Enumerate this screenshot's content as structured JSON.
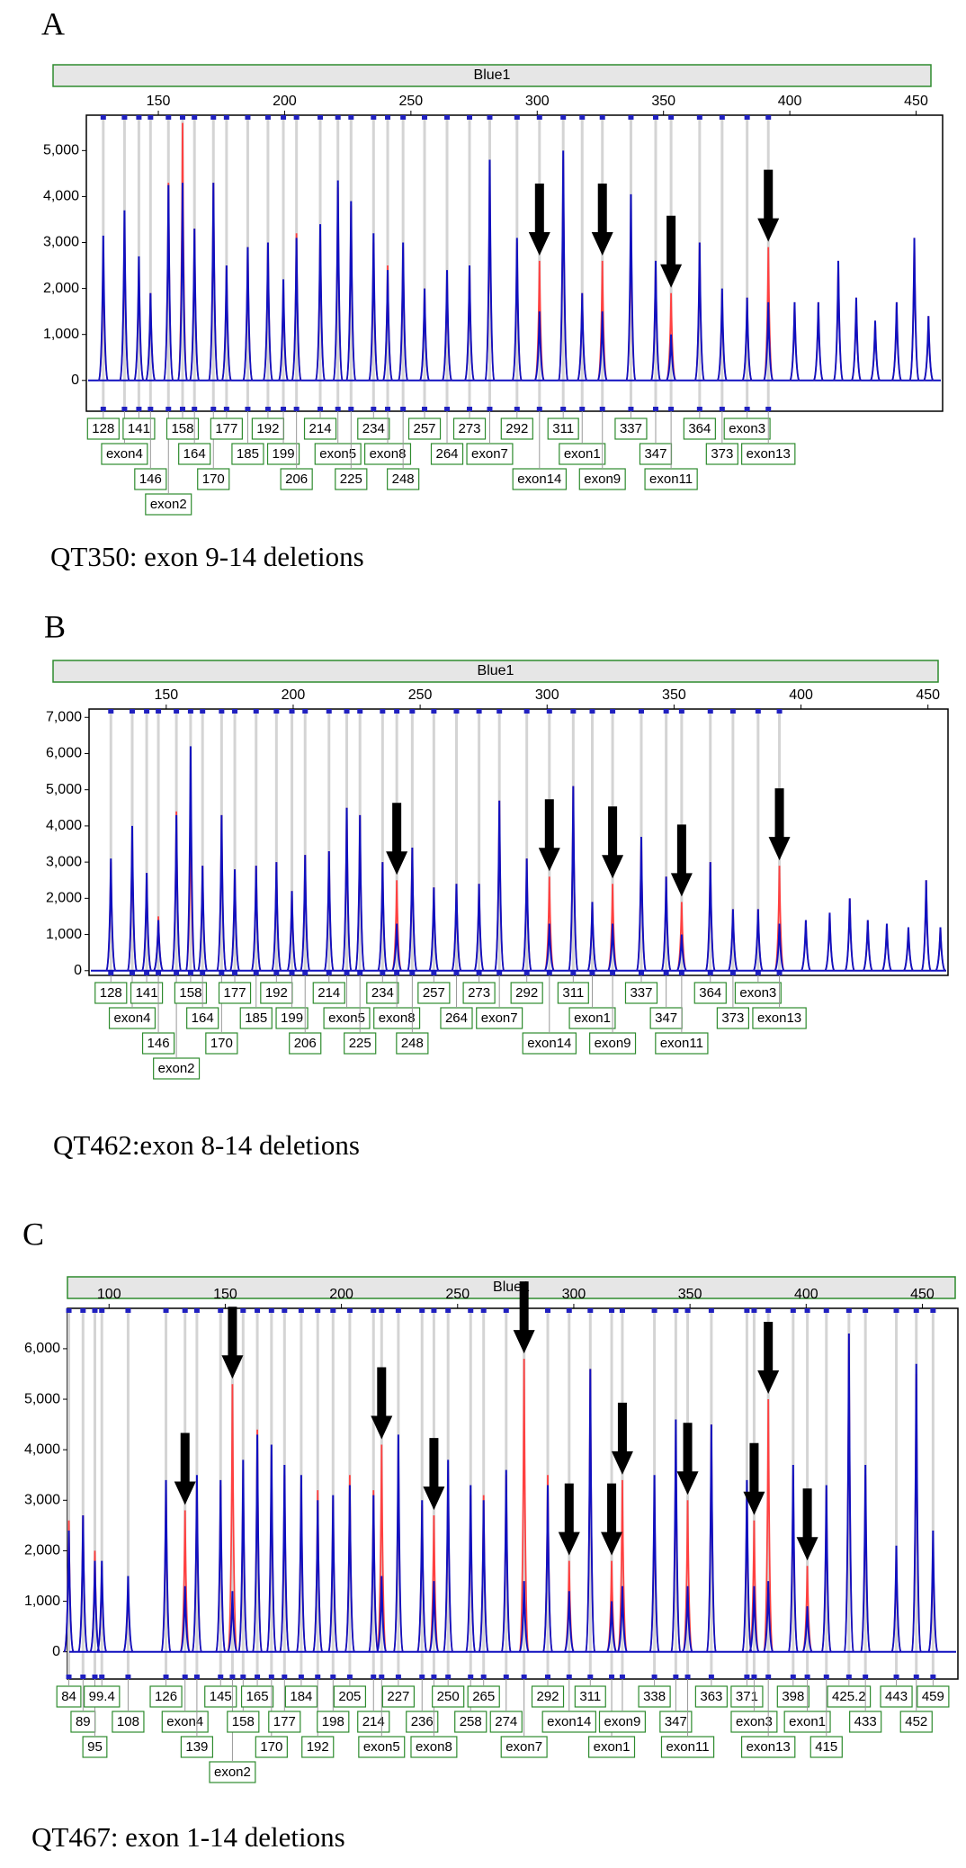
{
  "chart_data": [
    {
      "type": "electropherogram",
      "panel_label": "A",
      "title": "Blue1",
      "caption": "QT350: exon 9-14 deletions",
      "x": [
        128.2,
        136.6,
        142.3,
        146.9,
        154,
        159.6,
        164.3,
        171.8,
        177,
        185.4,
        193.4,
        199.5,
        204.7,
        214.1,
        221.1,
        226.3,
        235.2,
        240.8,
        246.9,
        255.4,
        264.3,
        273.2,
        281.2,
        292,
        300.9,
        310.3,
        317.8,
        325.8,
        337.1,
        346.9,
        353,
        364.3,
        373.2,
        383.1,
        391.5,
        401.9,
        411.3,
        419.2,
        426.3,
        433.8,
        442.3,
        449.3,
        454.9
      ],
      "probes": [
        "128",
        "exon4",
        "141",
        "146",
        "exon2",
        "158",
        "164",
        "170",
        "177",
        "185",
        "192",
        "199",
        "206",
        "214",
        "exon5",
        "225",
        "234",
        "exon8",
        "248",
        "257",
        "264",
        "273",
        "exon7",
        "292",
        "exon14",
        "311",
        "exon1",
        "exon9",
        "337",
        "347",
        "exon11",
        "364",
        "373",
        "exon3",
        "exon13",
        null,
        null,
        null,
        null,
        null,
        null,
        null,
        null
      ],
      "series": [
        {
          "color": "#ff4040",
          "values": [
            2800,
            3500,
            2600,
            1900,
            4300,
            5600,
            3300,
            4300,
            2500,
            2900,
            3000,
            2100,
            3200,
            3300,
            4200,
            3800,
            3000,
            2500,
            2900,
            2000,
            2300,
            2500,
            4500,
            3000,
            2600,
            4800,
            1900,
            2600,
            3600,
            2600,
            1900,
            3000,
            1900,
            1800,
            2900,
            1700,
            1700,
            2600,
            1800,
            1300,
            1700,
            3100,
            1400
          ]
        },
        {
          "color": "#1010c0",
          "values": [
            3150,
            3700,
            2700,
            1900,
            4250,
            4300,
            3300,
            4300,
            2500,
            2900,
            3000,
            2200,
            3100,
            3400,
            4350,
            3900,
            3200,
            2400,
            3000,
            2000,
            2400,
            2500,
            4800,
            3100,
            1500,
            5000,
            1900,
            1500,
            4050,
            2600,
            1000,
            3000,
            2000,
            1800,
            1700,
            1700,
            1700,
            2600,
            1800,
            1300,
            1700,
            3100,
            1400
          ]
        }
      ],
      "arrows": [
        300.9,
        325.8,
        353,
        391.5
      ],
      "xlim": [
        121.5,
        460.5
      ],
      "xticks": [
        150,
        200,
        250,
        300,
        350,
        400,
        450
      ],
      "ylim": [
        -670,
        5770
      ],
      "yticks": [
        0,
        {
          "value": 1000,
          "label": "1,000"
        },
        {
          "value": 2000,
          "label": "2,000"
        },
        {
          "value": 3000,
          "label": "3,000"
        },
        {
          "value": 4000,
          "label": "4,000"
        },
        {
          "value": 5000,
          "label": "5,000"
        }
      ]
    },
    {
      "type": "electropherogram",
      "panel_label": "B",
      "title": "Blue1",
      "caption": "QT462:exon 8-14 deletions",
      "x": [
        128.2,
        136.6,
        142.3,
        146.9,
        154,
        159.6,
        164.3,
        171.8,
        177,
        185.4,
        193.4,
        199.5,
        204.7,
        214.1,
        221.1,
        226.3,
        235.2,
        240.8,
        246.9,
        255.4,
        264.3,
        273.2,
        281.2,
        292,
        300.9,
        310.3,
        317.8,
        325.8,
        337.1,
        346.9,
        353,
        364.3,
        373.2,
        383.1,
        391.5,
        401.9,
        411.3,
        419.2,
        426.3,
        433.8,
        442.3,
        449.3,
        454.9
      ],
      "probes": [
        "128",
        "exon4",
        "141",
        "146",
        "exon2",
        "158",
        "164",
        "170",
        "177",
        "185",
        "192",
        "199",
        "206",
        "214",
        "exon5",
        "225",
        "234",
        "exon8",
        "248",
        "257",
        "264",
        "273",
        "exon7",
        "292",
        "exon14",
        "311",
        "exon1",
        "exon9",
        "337",
        "347",
        "exon11",
        "364",
        "373",
        "exon3",
        "exon13",
        null,
        null,
        null,
        null,
        null,
        null,
        null,
        null
      ],
      "series": [
        {
          "color": "#ff4040",
          "values": [
            3000,
            3800,
            2700,
            1500,
            4400,
            4400,
            2900,
            4300,
            2800,
            2900,
            3000,
            2200,
            3200,
            3300,
            4500,
            4300,
            3000,
            2500,
            3400,
            2300,
            2400,
            2400,
            4700,
            3100,
            2600,
            5100,
            1900,
            2400,
            3700,
            2600,
            1900,
            3000,
            1700,
            1700,
            2900,
            1400,
            1600,
            2000,
            1400,
            1300,
            1200,
            2500,
            1200
          ]
        },
        {
          "color": "#1010c0",
          "values": [
            3100,
            4000,
            2700,
            1400,
            4300,
            6200,
            2900,
            4300,
            2800,
            2900,
            3000,
            2200,
            3200,
            3300,
            4500,
            4300,
            3000,
            1300,
            3400,
            2300,
            2400,
            2400,
            4700,
            3100,
            1300,
            5100,
            1900,
            1300,
            3700,
            2600,
            1000,
            3000,
            1700,
            1700,
            1300,
            1400,
            1600,
            2000,
            1400,
            1300,
            1200,
            2500,
            1200
          ]
        }
      ],
      "arrows": [
        240.8,
        300.9,
        325.8,
        353,
        391.5
      ],
      "xlim": [
        119.6,
        457.9
      ],
      "xticks": [
        150,
        200,
        250,
        300,
        350,
        400,
        450
      ],
      "ylim": [
        -130,
        7230
      ],
      "yticks": [
        0,
        {
          "value": 1000,
          "label": "1,000"
        },
        {
          "value": 2000,
          "label": "2,000"
        },
        {
          "value": 3000,
          "label": "3,000"
        },
        {
          "value": 4000,
          "label": "4,000"
        },
        {
          "value": 5000,
          "label": "5,000"
        },
        {
          "value": 6000,
          "label": "6,000"
        },
        {
          "value": 7000,
          "label": "7,000"
        }
      ]
    },
    {
      "type": "electropherogram",
      "panel_label": "C",
      "title": "Blue1",
      "caption": "QT467: exon 1-14 deletions",
      "x": [
        82.7,
        88.8,
        93.9,
        96.9,
        108.2,
        124.5,
        132.7,
        137.8,
        148,
        153.1,
        157.7,
        163.8,
        169.9,
        175.5,
        182.7,
        189.8,
        196.4,
        203.6,
        213.8,
        217.3,
        224.5,
        234.7,
        239.8,
        245.9,
        255.6,
        261.2,
        270.9,
        278.6,
        288.8,
        298,
        307.1,
        316.3,
        320.9,
        334.7,
        343.9,
        349,
        359.2,
        374.5,
        377.6,
        383.7,
        394.4,
        400.5,
        408.7,
        418.4,
        425.5,
        438.8,
        447.4,
        454.6
      ],
      "probes": [
        "84",
        "89",
        "95",
        "99.4",
        "108",
        "126",
        "exon4",
        "139",
        "145",
        "exon2",
        "158",
        "165",
        "170",
        "177",
        "184",
        "192",
        "198",
        "205",
        "214",
        "exon5",
        "227",
        "236",
        "exon8",
        "250",
        "258",
        "265",
        "274",
        "exon7",
        "292",
        "exon14",
        "311",
        "exon1",
        "exon9",
        "338",
        "347",
        "exon11",
        "363",
        "371",
        "exon3",
        "exon13",
        "398",
        "exon1",
        "415",
        "425.2",
        "433",
        "443",
        "452",
        "459"
      ],
      "series": [
        {
          "color": "#ff4040",
          "values": [
            2600,
            2700,
            2000,
            1700,
            1400,
            3300,
            2800,
            3400,
            3300,
            5300,
            3600,
            4400,
            3900,
            3500,
            3400,
            3200,
            3000,
            3500,
            3200,
            4100,
            4100,
            2900,
            2700,
            3600,
            3100,
            3100,
            3500,
            5800,
            3500,
            1800,
            5600,
            1800,
            3400,
            3300,
            4300,
            3000,
            4500,
            3200,
            2600,
            5000,
            3500,
            1700,
            3200,
            6300,
            3500,
            2000,
            5500,
            2200
          ]
        },
        {
          "color": "#1010c0",
          "values": [
            2400,
            2700,
            1800,
            1800,
            1500,
            3400,
            1300,
            3500,
            3400,
            1200,
            3800,
            4300,
            4100,
            3700,
            3500,
            3000,
            3100,
            3300,
            3100,
            1500,
            4300,
            3000,
            1400,
            3800,
            3300,
            3000,
            3600,
            1400,
            3300,
            1200,
            5600,
            1000,
            1300,
            3500,
            4600,
            1300,
            4500,
            3400,
            1300,
            1400,
            3700,
            900,
            3300,
            6300,
            3700,
            2100,
            5700,
            2400
          ]
        }
      ],
      "arrows": [
        132.7,
        153.1,
        217.3,
        239.8,
        278.6,
        298,
        316.3,
        320.9,
        349,
        377.6,
        383.7,
        400.5
      ],
      "xlim": [
        82.1,
        465.3
      ],
      "xticks": [
        100,
        150,
        200,
        250,
        300,
        350,
        400,
        450
      ],
      "ylim": [
        -540,
        6800
      ],
      "yticks": [
        0,
        {
          "value": 1000,
          "label": "1,000"
        },
        {
          "value": 2000,
          "label": "2,000"
        },
        {
          "value": 3000,
          "label": "3,000"
        },
        {
          "value": 4000,
          "label": "4,000"
        },
        {
          "value": 5000,
          "label": "5,000"
        },
        {
          "value": 6000,
          "label": "6,000"
        }
      ]
    }
  ]
}
